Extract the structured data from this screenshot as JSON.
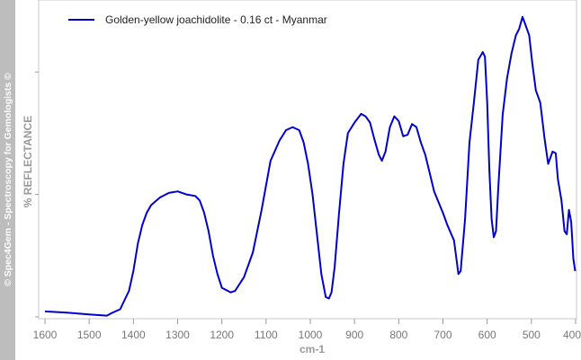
{
  "sidebar": {
    "copyright": "© Spec4Gem - Spectroscopy for Gemologists ©"
  },
  "chart_data": {
    "type": "line",
    "xlabel": "cm-1",
    "ylabel": "% REFLECTANCE",
    "xlim": [
      1600,
      400
    ],
    "x_reversed": true,
    "ylim": [
      0,
      100
    ],
    "x_ticks": [
      1600,
      1500,
      1400,
      1300,
      1200,
      1100,
      1000,
      900,
      800,
      700,
      600,
      500,
      400
    ],
    "legend_position": "top-left",
    "grid": false,
    "line_color": "#0000cc",
    "series": [
      {
        "name": "Golden-yellow joachidolite - 0.16 ct - Myanmar",
        "points": [
          [
            1600,
            1.8
          ],
          [
            1550,
            1.4
          ],
          [
            1500,
            0.8
          ],
          [
            1460,
            0.4
          ],
          [
            1450,
            1.2
          ],
          [
            1430,
            2.5
          ],
          [
            1410,
            8.5
          ],
          [
            1400,
            15
          ],
          [
            1390,
            24
          ],
          [
            1380,
            30
          ],
          [
            1370,
            34
          ],
          [
            1360,
            36.5
          ],
          [
            1340,
            39
          ],
          [
            1320,
            40.5
          ],
          [
            1300,
            41
          ],
          [
            1280,
            40
          ],
          [
            1260,
            39.5
          ],
          [
            1250,
            38
          ],
          [
            1240,
            34
          ],
          [
            1230,
            28
          ],
          [
            1220,
            20
          ],
          [
            1210,
            14
          ],
          [
            1200,
            9.5
          ],
          [
            1180,
            8
          ],
          [
            1170,
            8.5
          ],
          [
            1150,
            13
          ],
          [
            1130,
            21
          ],
          [
            1110,
            35
          ],
          [
            1090,
            51
          ],
          [
            1070,
            57.5
          ],
          [
            1055,
            61
          ],
          [
            1040,
            62
          ],
          [
            1025,
            61
          ],
          [
            1015,
            57
          ],
          [
            1005,
            50
          ],
          [
            995,
            40
          ],
          [
            985,
            27
          ],
          [
            975,
            14
          ],
          [
            965,
            6.5
          ],
          [
            958,
            6
          ],
          [
            952,
            8
          ],
          [
            945,
            16
          ],
          [
            935,
            34
          ],
          [
            925,
            50
          ],
          [
            915,
            60
          ],
          [
            900,
            63.5
          ],
          [
            885,
            66.3
          ],
          [
            875,
            65.5
          ],
          [
            865,
            63.5
          ],
          [
            855,
            58
          ],
          [
            845,
            53
          ],
          [
            838,
            51
          ],
          [
            830,
            54
          ],
          [
            820,
            62
          ],
          [
            810,
            65.5
          ],
          [
            800,
            64
          ],
          [
            790,
            59
          ],
          [
            780,
            59.5
          ],
          [
            770,
            63
          ],
          [
            760,
            62
          ],
          [
            750,
            57
          ],
          [
            740,
            53
          ],
          [
            730,
            47
          ],
          [
            720,
            41
          ],
          [
            700,
            34
          ],
          [
            690,
            30
          ],
          [
            675,
            25
          ],
          [
            665,
            14
          ],
          [
            660,
            15
          ],
          [
            650,
            32
          ],
          [
            640,
            57
          ],
          [
            630,
            70
          ],
          [
            620,
            84
          ],
          [
            610,
            86.5
          ],
          [
            605,
            85
          ],
          [
            600,
            70
          ],
          [
            595,
            48
          ],
          [
            590,
            32
          ],
          [
            585,
            26
          ],
          [
            580,
            28
          ],
          [
            575,
            42
          ],
          [
            565,
            66
          ],
          [
            555,
            78
          ],
          [
            545,
            86
          ],
          [
            535,
            92
          ],
          [
            528,
            94
          ],
          [
            520,
            98
          ],
          [
            515,
            96
          ],
          [
            505,
            92
          ],
          [
            498,
            83
          ],
          [
            490,
            74
          ],
          [
            480,
            70
          ],
          [
            470,
            58
          ],
          [
            462,
            50
          ],
          [
            452,
            54
          ],
          [
            445,
            53.5
          ],
          [
            440,
            45
          ],
          [
            432,
            38
          ],
          [
            425,
            28
          ],
          [
            420,
            27
          ],
          [
            415,
            35
          ],
          [
            410,
            31
          ],
          [
            405,
            19
          ],
          [
            401,
            15
          ]
        ]
      }
    ]
  }
}
